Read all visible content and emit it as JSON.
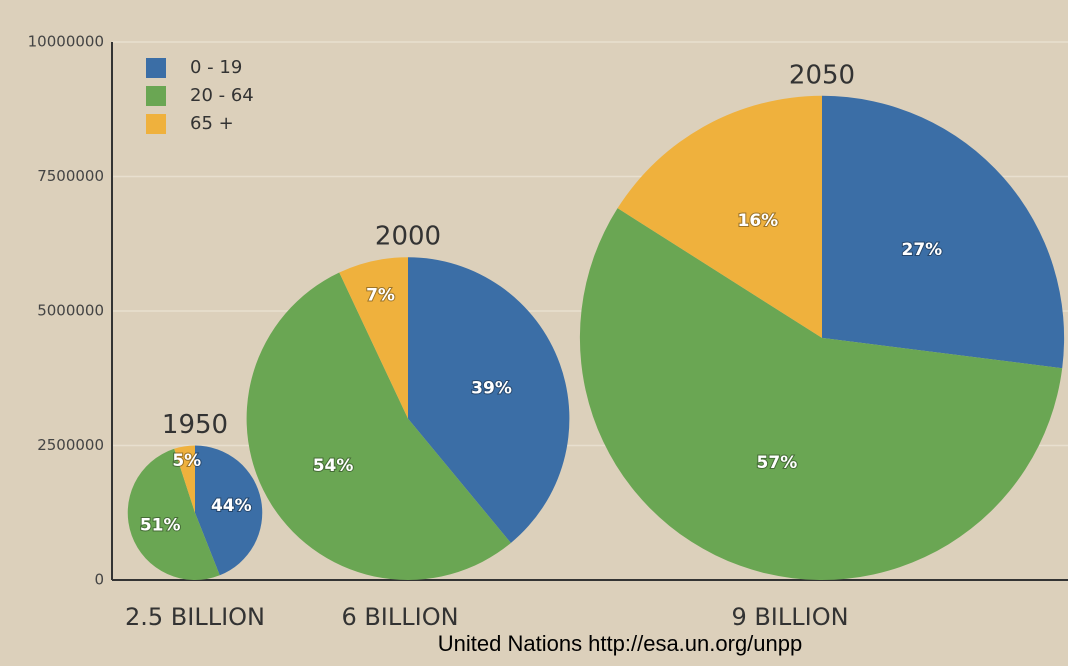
{
  "chart_data": {
    "type": "pie",
    "categories": [
      "0  - 19",
      "20 - 64",
      "65 +"
    ],
    "colors": [
      "#3b6ea6",
      "#6aa653",
      "#efb13d"
    ],
    "ylim": [
      0,
      10000000
    ],
    "yticks": [
      0,
      2500000,
      5000000,
      7500000,
      10000000
    ],
    "grid": true,
    "legend": "upper left",
    "pies": [
      {
        "title": "1950",
        "total": 2500000,
        "total_label": "2.5 BILLION",
        "values": [
          44,
          51,
          5
        ],
        "value_labels": [
          "44%",
          "51%",
          "5%"
        ]
      },
      {
        "title": "2000",
        "total": 6000000,
        "total_label": "6 BILLION",
        "values": [
          39,
          54,
          7
        ],
        "value_labels": [
          "39%",
          "54%",
          "7%"
        ]
      },
      {
        "title": "2050",
        "total": 9000000,
        "total_label": "9 BILLION",
        "values": [
          27,
          57,
          16
        ],
        "value_labels": [
          "27%",
          "57%",
          "16%"
        ]
      }
    ],
    "source": "United Nations http://esa.un.org/unpp"
  }
}
